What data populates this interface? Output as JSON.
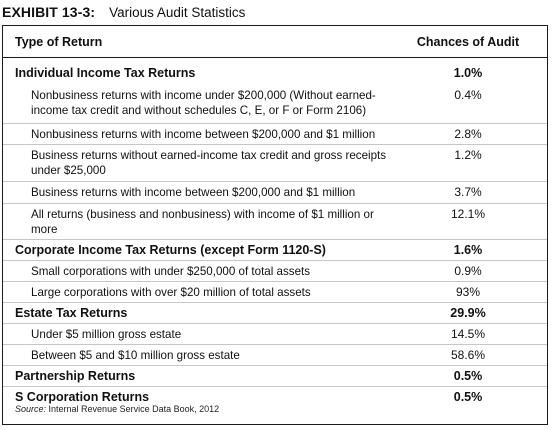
{
  "exhibit": {
    "label": "EXHIBIT 13-3:",
    "title": "Various Audit Statistics"
  },
  "columns": {
    "type": "Type of Return",
    "chance": "Chances of Audit"
  },
  "rows": [
    {
      "label": "Individual Income Tax Returns",
      "value": "1.0%",
      "kind": "main"
    },
    {
      "label": "Nonbusiness returns with income under $200,000 (Without earned-income tax credit and without schedules C, E, or F or Form 2106)",
      "value": "0.4%",
      "kind": "sub"
    },
    {
      "label": "Nonbusiness returns with income between $200,000 and $1 million",
      "value": "2.8%",
      "kind": "sub"
    },
    {
      "label": "Business returns without earned-income tax credit and gross receipts under $25,000",
      "value": "1.2%",
      "kind": "sub"
    },
    {
      "label": "Business returns with income between $200,000 and $1 million",
      "value": "3.7%",
      "kind": "sub"
    },
    {
      "label": "All returns (business and nonbusiness) with income of $1 million or more",
      "value": "12.1%",
      "kind": "sub"
    },
    {
      "label": "Corporate Income Tax Returns (except Form 1120-S)",
      "value": "1.6%",
      "kind": "main"
    },
    {
      "label": "Small corporations with under $250,000 of total assets",
      "value": "0.9%",
      "kind": "sub"
    },
    {
      "label": "Large corporations with over $20 million of total assets",
      "value": "93%",
      "kind": "sub"
    },
    {
      "label": "Estate Tax Returns",
      "value": "29.9%",
      "kind": "main"
    },
    {
      "label": "Under $5 million gross estate",
      "value": "14.5%",
      "kind": "sub"
    },
    {
      "label": "Between $5 and $10 million gross estate",
      "value": "58.6%",
      "kind": "sub"
    },
    {
      "label": "Partnership Returns",
      "value": "0.5%",
      "kind": "main"
    },
    {
      "label": "S Corporation Returns",
      "value": "0.5%",
      "kind": "main"
    }
  ],
  "source": {
    "prefix": "Source:",
    "text": " Internal Revenue Service Data Book, 2012"
  }
}
